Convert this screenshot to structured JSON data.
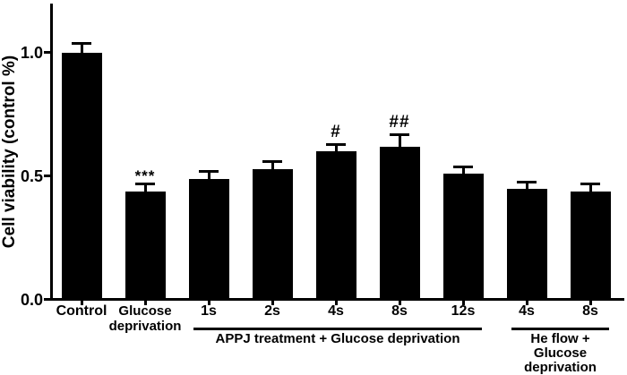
{
  "figure": {
    "background": "#ffffff",
    "foreground": "#000000"
  },
  "chart_data": {
    "type": "bar",
    "title": "",
    "xlabel": "",
    "ylabel": "Cell viability (control %)",
    "ylim": [
      0,
      1.2
    ],
    "grid": false,
    "legend": null,
    "bar_color": "#000000",
    "error_bar_color": "#000000",
    "ytick_labels": [
      "0.0",
      "0.5",
      "1.0"
    ],
    "ytick_values": [
      0.0,
      0.5,
      1.0
    ],
    "categories": [
      "Control",
      "Glucose\ndeprivation",
      "1s",
      "2s",
      "4s",
      "8s",
      "12s",
      "4s",
      "8s"
    ],
    "values": [
      1.0,
      0.44,
      0.49,
      0.53,
      0.6,
      0.62,
      0.51,
      0.45,
      0.44
    ],
    "errors": [
      0.04,
      0.03,
      0.03,
      0.03,
      0.03,
      0.05,
      0.03,
      0.03,
      0.03
    ],
    "significance": [
      "",
      "***",
      "",
      "",
      "#",
      "##",
      "",
      "",
      ""
    ],
    "group_brackets": [
      {
        "label": "APPJ treatment + Glucose deprivation",
        "start_index": 2,
        "end_index": 6
      },
      {
        "label": "He flow +\nGlucose deprivation",
        "start_index": 7,
        "end_index": 8
      }
    ]
  }
}
